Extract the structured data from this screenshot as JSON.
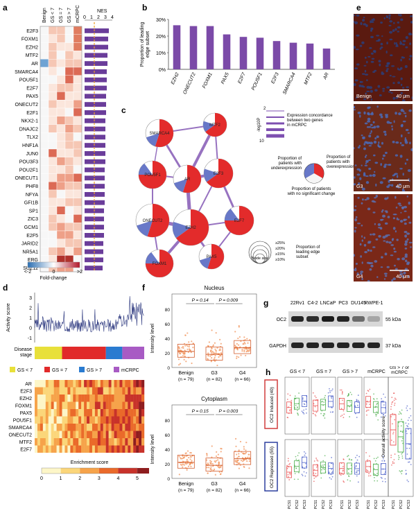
{
  "panels": {
    "a": "a",
    "b": "b",
    "c": "c",
    "d": "d",
    "e": "e",
    "f": "f",
    "g": "g",
    "h": "h"
  },
  "panel_a": {
    "columns": [
      "Benign",
      "GS < 7",
      "GS = 7",
      "GS > 7",
      "mCRPC"
    ],
    "nes_label": "NES",
    "nes_ticks": [
      "0",
      "1",
      "2",
      "3",
      "4"
    ],
    "genes": [
      "E2F3",
      "FOXM1",
      "EZH2",
      "MTF2",
      "AR",
      "SMARCA4",
      "POU5F1",
      "E2F7",
      "PAX5",
      "ONECUT2",
      "E2F1",
      "NKX2-1",
      "DNAJC2",
      "TLX2",
      "HNF1A",
      "JUN0",
      "POU3F3",
      "POU2F1",
      "ONECUT1",
      "PHF8",
      "NFYA",
      "GFI1B",
      "SP1",
      "ZIC3",
      "GCM1",
      "E2F5",
      "JARID2",
      "NR5A1",
      "ERG",
      "SUZ12"
    ],
    "nes": [
      3.5,
      3.4,
      3.4,
      3.3,
      3.3,
      3.2,
      3.2,
      3.2,
      3.1,
      3.1,
      3.1,
      3.0,
      3.0,
      3.0,
      3.0,
      3.0,
      3.0,
      2.9,
      2.9,
      2.9,
      2.9,
      2.9,
      2.8,
      2.8,
      2.8,
      2.8,
      2.7,
      2.7,
      2.7,
      2.6
    ],
    "legend_ticks": [
      "<-2",
      "0",
      ">2"
    ],
    "legend_label": "Fold-change"
  },
  "chart_data": [
    {
      "type": "bar",
      "panel": "b",
      "categories": [
        "EZH2",
        "ONECUT2",
        "FOXM1",
        "PAX5",
        "E2F7",
        "POU5F1",
        "E2F3",
        "SMARCA4",
        "MTF2",
        "AR"
      ],
      "values": [
        26.5,
        26,
        26,
        21,
        19.5,
        19,
        17,
        16,
        15.5,
        12.5
      ],
      "ylabel": "Proportion of leading edge subset",
      "ylim": [
        0,
        30
      ],
      "yticks": [
        "0%",
        "10%",
        "20%",
        "30%"
      ],
      "color": "#7b4aa8"
    },
    {
      "type": "line",
      "panel": "d",
      "ylabel": "Activity score",
      "yticks": [
        "-1",
        "0",
        "1",
        "2",
        "3"
      ],
      "ylim": [
        -1.5,
        3.5
      ]
    },
    {
      "type": "scatter",
      "panel": "f-top",
      "title": "Nucleus",
      "categories": [
        "Benign",
        "G3",
        "G4"
      ],
      "n_labels": [
        "(n = 79)",
        "(n = 82)",
        "(n = 66)"
      ],
      "p_values": [
        "P = 0.14",
        "P = 0.009"
      ],
      "ylabel": "Intensity level",
      "yticks": [
        "0",
        "20",
        "40",
        "60",
        "80"
      ]
    },
    {
      "type": "scatter",
      "panel": "f-bottom",
      "title": "Cytoplasm",
      "categories": [
        "Benign",
        "G3",
        "G4"
      ],
      "n_labels": [
        "(n = 79)",
        "(n = 82)",
        "(n = 66)"
      ],
      "p_values": [
        "P = 0.15",
        "P = 0.003"
      ],
      "ylabel": "Intensity level",
      "yticks": [
        "0",
        "20",
        "40",
        "60",
        "80"
      ]
    }
  ],
  "panel_c": {
    "nodes": [
      "SMARCA4",
      "MTF2",
      "POU5F1",
      "AR",
      "E2F3",
      "E2F7",
      "ONECUT2",
      "EZH2",
      "FOXM1",
      "PAX5",
      "E2F1"
    ],
    "legend_scale_label": "-log10P",
    "legend_scale_ticks": [
      "2",
      "10"
    ],
    "legend_concordance": "Expression concordance between two genes in mCRPC",
    "legend_under": "Proportion of patients with underexpression",
    "legend_over": "Proportion of patients with overexpression",
    "legend_nochange": "Proportion of patients with no significant change",
    "size_labels": [
      "≥25%",
      "≥20%",
      "≥15%",
      "≥10%"
    ],
    "node_size": "Node size",
    "size_title": "Proportion of leading edge subset"
  },
  "panel_d": {
    "disease_stage": "Disease stage",
    "stage_legend": [
      {
        "label": "GS < 7",
        "color": "#e8e03a"
      },
      {
        "label": "GS = 7",
        "color": "#e12a2a"
      },
      {
        "label": "GS > 7",
        "color": "#2a7bd0"
      },
      {
        "label": "mCRPC",
        "color": "#a85bc4"
      }
    ],
    "genes": [
      "AR",
      "E2F3",
      "EZH2",
      "FOXM1",
      "PAX5",
      "POU5F1",
      "SMARCA4",
      "ONECUT2",
      "MTF2",
      "E2F7"
    ],
    "enrichment_label": "Enrichment score",
    "enrichment_ticks": [
      "0",
      "1",
      "2",
      "3",
      "4",
      "5"
    ]
  },
  "panel_e": {
    "labels": [
      "Benign",
      "G3",
      "G4"
    ],
    "scale": "40 μm"
  },
  "panel_g": {
    "lanes": [
      "22Rv1",
      "C4-2",
      "LNCaP",
      "PC3",
      "DU145",
      "RWPE-1"
    ],
    "rows": [
      {
        "label": "OC2",
        "kda": "55 kDa"
      },
      {
        "label": "GAPDH",
        "kda": "37 kDa"
      }
    ]
  },
  "panel_h": {
    "groups": [
      "GS < 7",
      "GS = 7",
      "GS > 7",
      "mCRPC"
    ],
    "right_title": "GS > 7 or mCRPC",
    "row_labels": [
      "OC2 Induced (40)",
      "OC2 Repressed (55)"
    ],
    "x_labels": [
      "PCS1",
      "PCS2",
      "PCS3"
    ],
    "right_ylabel": "Overall activity score"
  }
}
